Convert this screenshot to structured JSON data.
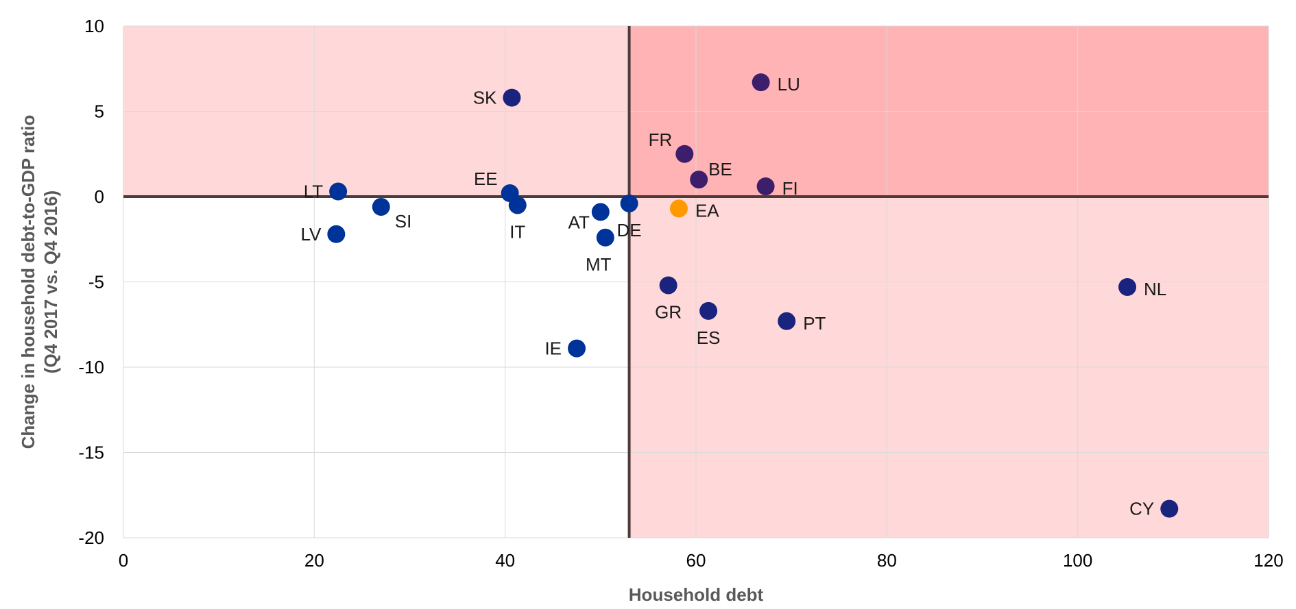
{
  "chart_data": {
    "type": "scatter",
    "xlabel": "Household debt",
    "ylabel_lines": [
      "Change in household debt-to-GDP ratio",
      "(Q4 2017 vs. Q4 2016)"
    ],
    "xlim": [
      0,
      120
    ],
    "ylim": [
      -20,
      10
    ],
    "x_ticks": [
      0,
      20,
      40,
      60,
      80,
      100,
      120
    ],
    "y_ticks": [
      10,
      5,
      0,
      -5,
      -10,
      -15,
      -20
    ],
    "grid": true,
    "reference_lines": {
      "x": 53,
      "y": 0
    },
    "shaded_regions": [
      {
        "quadrant": "top-left",
        "color": "#ffd9d9"
      },
      {
        "quadrant": "top-right",
        "color": "#ffb3b5"
      },
      {
        "quadrant": "bottom-right",
        "color": "#ffd9d9"
      }
    ],
    "series": [
      {
        "points": [
          {
            "label": "LT",
            "x": 22.5,
            "y": 0.3,
            "color": "#003399",
            "label_pos": "left"
          },
          {
            "label": "SI",
            "x": 27,
            "y": -0.6,
            "color": "#003399",
            "label_pos": "right-below"
          },
          {
            "label": "LV",
            "x": 22.3,
            "y": -2.2,
            "color": "#003399",
            "label_pos": "left"
          },
          {
            "label": "SK",
            "x": 40.7,
            "y": 5.8,
            "color": "#1a237e",
            "label_pos": "left"
          },
          {
            "label": "EE",
            "x": 40.5,
            "y": 0.2,
            "color": "#003399",
            "label_pos": "left-above"
          },
          {
            "label": "IT",
            "x": 41.3,
            "y": -0.5,
            "color": "#003399",
            "label_pos": "below"
          },
          {
            "label": "AT",
            "x": 50,
            "y": -0.9,
            "color": "#003399",
            "label_pos": "left-below"
          },
          {
            "label": "DE",
            "x": 53,
            "y": -0.4,
            "color": "#003399",
            "label_pos": "below"
          },
          {
            "label": "MT",
            "x": 50.5,
            "y": -2.4,
            "color": "#003399",
            "label_pos": "below-left"
          },
          {
            "label": "IE",
            "x": 47.5,
            "y": -8.9,
            "color": "#003399",
            "label_pos": "left"
          },
          {
            "label": "FR",
            "x": 58.8,
            "y": 2.5,
            "color": "#3d1e6b",
            "label_pos": "left-above"
          },
          {
            "label": "BE",
            "x": 60.3,
            "y": 1.0,
            "color": "#3d1e6b",
            "label_pos": "right-above"
          },
          {
            "label": "LU",
            "x": 66.8,
            "y": 6.7,
            "color": "#3d1e6b",
            "label_pos": "right"
          },
          {
            "label": "FI",
            "x": 67.3,
            "y": 0.6,
            "color": "#3d1e6b",
            "label_pos": "right"
          },
          {
            "label": "EA",
            "x": 58.2,
            "y": -0.7,
            "color": "#ff9900",
            "label_pos": "right"
          },
          {
            "label": "GR",
            "x": 57.1,
            "y": -5.2,
            "color": "#1a237e",
            "label_pos": "below"
          },
          {
            "label": "ES",
            "x": 61.3,
            "y": -6.7,
            "color": "#1a237e",
            "label_pos": "below"
          },
          {
            "label": "PT",
            "x": 69.5,
            "y": -7.3,
            "color": "#1a237e",
            "label_pos": "right"
          },
          {
            "label": "NL",
            "x": 105.2,
            "y": -5.3,
            "color": "#1a237e",
            "label_pos": "right"
          },
          {
            "label": "CY",
            "x": 109.6,
            "y": -18.3,
            "color": "#1a237e",
            "label_pos": "left"
          }
        ]
      }
    ]
  }
}
